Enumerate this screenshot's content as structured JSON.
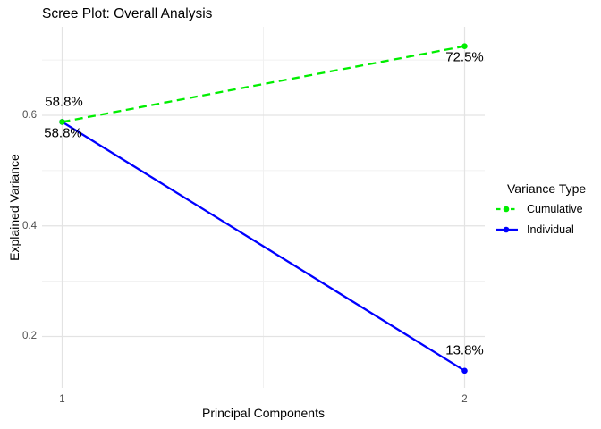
{
  "chart_data": {
    "type": "line",
    "title": "Scree Plot: Overall Analysis",
    "xlabel": "Principal Components",
    "ylabel": "Explained Variance",
    "legend_title": "Variance Type",
    "legend_position": "right",
    "grid": true,
    "background": "#ffffff",
    "x": [
      1,
      2
    ],
    "xticks": [
      {
        "value": 1,
        "label": "1"
      },
      {
        "value": 2,
        "label": "2"
      }
    ],
    "yticks": [
      {
        "value": 0.2,
        "label": "0.2"
      },
      {
        "value": 0.4,
        "label": "0.4"
      },
      {
        "value": 0.6,
        "label": "0.6"
      }
    ],
    "minor_xticks": [
      1.5
    ],
    "minor_yticks": [
      0.3,
      0.5,
      0.7
    ],
    "xlim": [
      0.95,
      2.05
    ],
    "ylim": [
      0.107,
      0.76
    ],
    "series": [
      {
        "name": "Cumulative",
        "color": "#00EE00",
        "linestyle": "dashed",
        "values": [
          0.588,
          0.725
        ]
      },
      {
        "name": "Individual",
        "color": "#0000FF",
        "linestyle": "solid",
        "values": [
          0.588,
          0.138
        ]
      }
    ],
    "annotations": [
      {
        "x": 1,
        "y": 0.588,
        "label": "58.8%",
        "placement": "above",
        "dx": 2
      },
      {
        "x": 1,
        "y": 0.588,
        "label": "58.8%",
        "placement": "below",
        "dx": 1
      },
      {
        "x": 2,
        "y": 0.725,
        "label": "72.5%",
        "placement": "below",
        "dx": 0
      },
      {
        "x": 2,
        "y": 0.138,
        "label": "13.8%",
        "placement": "above",
        "dx": 0
      }
    ],
    "colors": {
      "grid_major": "#e3e3e3",
      "grid_minor": "#f1f1f1",
      "tick_label": "#4d4d4d",
      "text": "#000000"
    }
  }
}
